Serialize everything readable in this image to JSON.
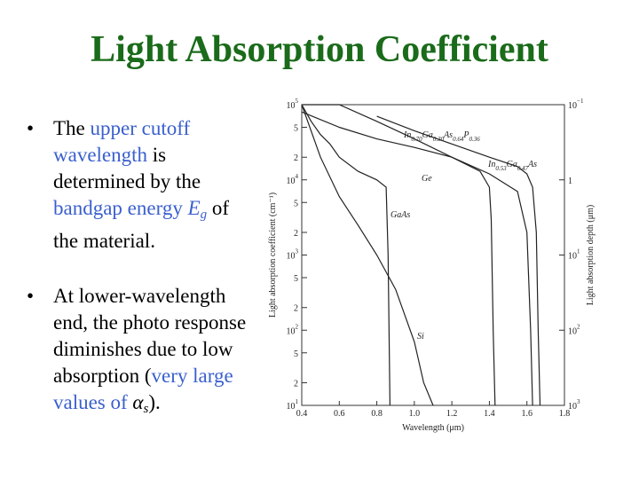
{
  "slide": {
    "title": "Light Absorption Coefficient",
    "bullets": [
      {
        "marker": "•",
        "segments": [
          {
            "text": "The ",
            "style": "plain"
          },
          {
            "text": "upper cutoff wavelength",
            "style": "highlight"
          },
          {
            "text": " is determined by the ",
            "style": "plain"
          },
          {
            "text": "bandgap energy ",
            "style": "highlight"
          },
          {
            "text": "E",
            "style": "highlight-italic"
          },
          {
            "text": "g",
            "style": "highlight-sub"
          },
          {
            "text": " of the material.",
            "style": "plain"
          }
        ]
      },
      {
        "marker": "•",
        "segments": [
          {
            "text": "At lower-wavelength end, the photo response diminishes due to low absorption (",
            "style": "plain"
          },
          {
            "text": "very large",
            "style": "highlight"
          },
          {
            "text": " values of ",
            "style": "highlight"
          },
          {
            "text": "α",
            "style": "plain-italic"
          },
          {
            "text": "s",
            "style": "plain-sub"
          },
          {
            "text": ").",
            "style": "plain"
          }
        ]
      }
    ],
    "colors": {
      "title": "#1a6b1a",
      "highlight": "#3a5fcd",
      "text": "#000000"
    }
  },
  "chart_data": {
    "type": "line",
    "xlabel": "Wavelength (μm)",
    "ylabel": "Light absorption coefficient (cm⁻¹)",
    "ylabel_right": "Light absorption depth (μm)",
    "xlim": [
      0.4,
      1.8
    ],
    "ylim": [
      10,
      100000
    ],
    "y_scale": "log",
    "x_ticks": [
      "0.4",
      "0.6",
      "0.8",
      "1.0",
      "1.2",
      "1.4",
      "1.6",
      "1.8"
    ],
    "y_ticks": [
      {
        "value": 10,
        "base": "10",
        "exp": "1"
      },
      {
        "value": 20,
        "label": "2"
      },
      {
        "value": 50,
        "label": "5"
      },
      {
        "value": 100,
        "base": "10",
        "exp": "2"
      },
      {
        "value": 200,
        "label": "2"
      },
      {
        "value": 500,
        "label": "5"
      },
      {
        "value": 1000,
        "base": "10",
        "exp": "3"
      },
      {
        "value": 2000,
        "label": "2"
      },
      {
        "value": 5000,
        "label": "5"
      },
      {
        "value": 10000,
        "base": "10",
        "exp": "4"
      },
      {
        "value": 20000,
        "label": "2"
      },
      {
        "value": 50000,
        "label": "5"
      },
      {
        "value": 100000,
        "base": "10",
        "exp": "5"
      }
    ],
    "y_right_ticks": [
      {
        "value": 100000,
        "base": "10",
        "exp": "−1"
      },
      {
        "value": 10000,
        "label": "1"
      },
      {
        "value": 1000,
        "base": "10",
        "exp": "1"
      },
      {
        "value": 100,
        "base": "10",
        "exp": "2"
      },
      {
        "value": 10,
        "base": "10",
        "exp": "3"
      }
    ],
    "series": [
      {
        "name": "In0.70Ga0.30As0.64P0.36",
        "x": [
          0.4,
          0.6,
          0.8,
          1.0,
          1.2,
          1.35,
          1.4,
          1.41,
          1.42,
          1.43
        ],
        "y": [
          80000,
          50000,
          35000,
          27000,
          20000,
          13000,
          8000,
          3000,
          100,
          10
        ]
      },
      {
        "name": "In0.53Ga0.47As",
        "x": [
          0.8,
          1.0,
          1.2,
          1.4,
          1.55,
          1.6,
          1.63,
          1.65,
          1.66,
          1.67
        ],
        "y": [
          70000,
          45000,
          30000,
          20000,
          15000,
          12000,
          8000,
          2000,
          100,
          10
        ]
      },
      {
        "name": "Ge",
        "x": [
          0.4,
          0.6,
          0.8,
          1.0,
          1.2,
          1.4,
          1.55,
          1.6,
          1.62,
          1.63
        ],
        "y": [
          100000,
          100000,
          60000,
          35000,
          20000,
          12000,
          7000,
          2000,
          100,
          10
        ]
      },
      {
        "name": "GaAs",
        "x": [
          0.4,
          0.45,
          0.5,
          0.55,
          0.6,
          0.7,
          0.8,
          0.85,
          0.86,
          0.87
        ],
        "y": [
          100000,
          60000,
          40000,
          30000,
          20000,
          13000,
          10000,
          8000,
          1000,
          10
        ]
      },
      {
        "name": "Si",
        "x": [
          0.4,
          0.5,
          0.6,
          0.7,
          0.8,
          0.9,
          1.0,
          1.05,
          1.1
        ],
        "y": [
          100000,
          20000,
          6000,
          2500,
          1000,
          350,
          70,
          20,
          10
        ]
      }
    ],
    "series_labels": [
      {
        "parts": [
          [
            "In",
            "n"
          ],
          [
            "0.70",
            "s"
          ],
          [
            "Ga",
            "n"
          ],
          [
            "0.30",
            "s"
          ],
          [
            "As",
            "n"
          ],
          [
            "0.64",
            "s"
          ],
          [
            "P",
            "n"
          ],
          [
            "0.36",
            "s"
          ]
        ]
      },
      {
        "parts": [
          [
            "In",
            "n"
          ],
          [
            "0.53",
            "s"
          ],
          [
            "Ga",
            "n"
          ],
          [
            "0.47",
            "s"
          ],
          [
            "As",
            "n"
          ]
        ]
      },
      {
        "parts": [
          [
            "Ge",
            "n"
          ]
        ]
      },
      {
        "parts": [
          [
            "GaAs",
            "n"
          ]
        ]
      },
      {
        "parts": [
          [
            "Si",
            "n"
          ]
        ]
      }
    ]
  }
}
